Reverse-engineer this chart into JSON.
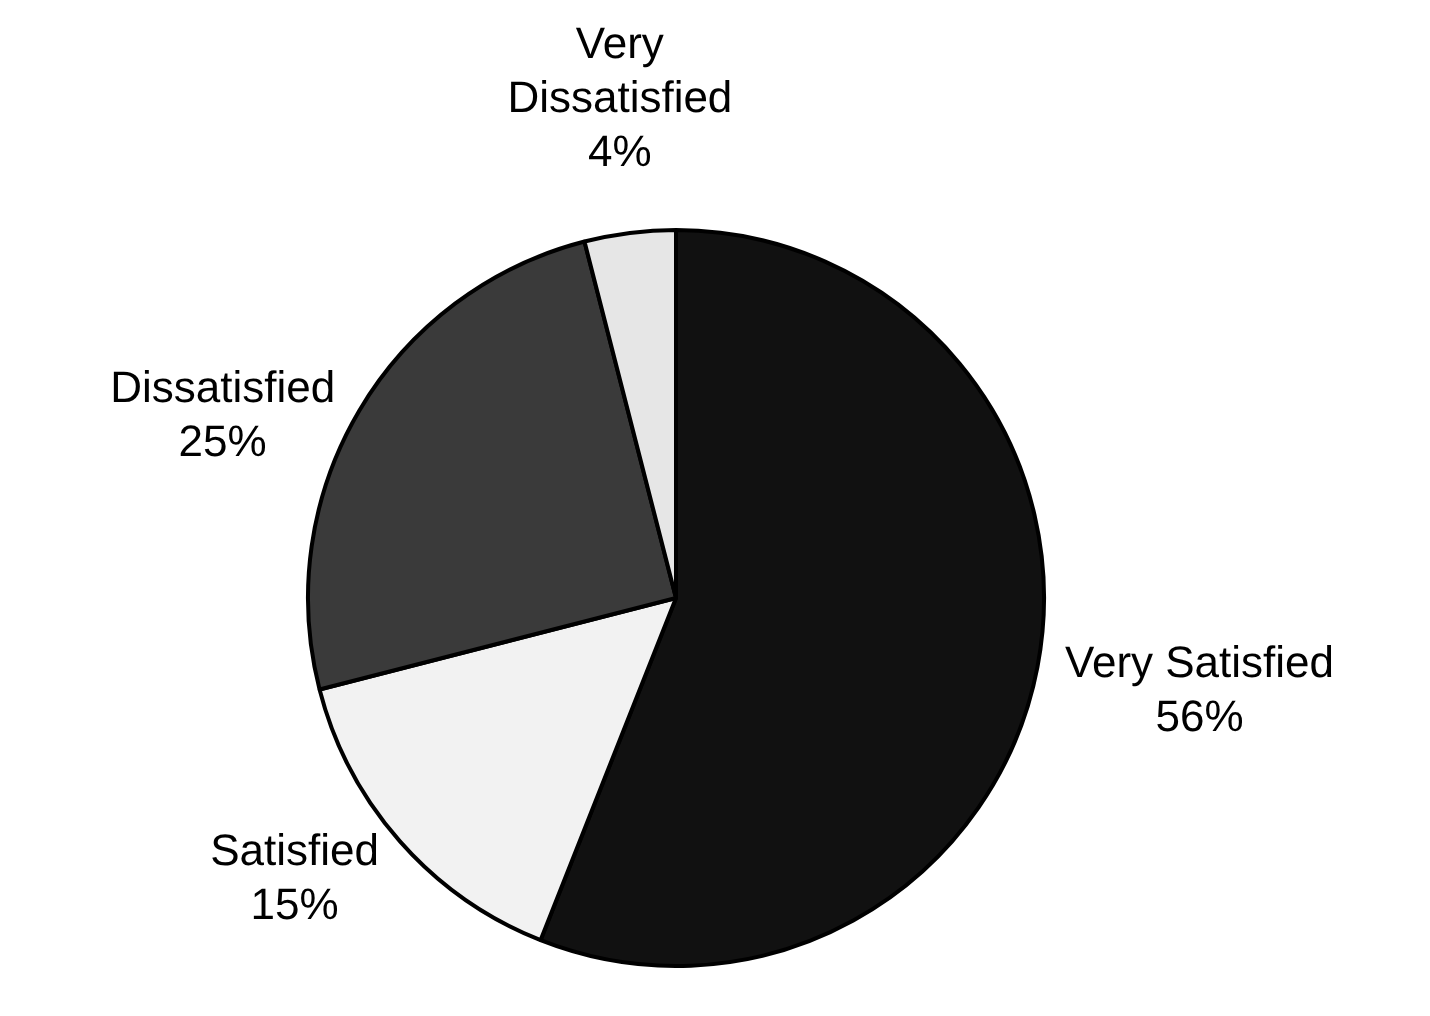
{
  "chart_data": {
    "type": "pie",
    "categories": [
      "Very Satisfied",
      "Satisfied",
      "Dissatisfied",
      "Very Dissatisfied"
    ],
    "values": [
      56,
      15,
      25,
      4
    ],
    "value_labels": [
      "56%",
      "15%",
      "25%",
      "4%"
    ],
    "colors": [
      "#111111",
      "#f2f2f2",
      "#3a3a3a",
      "#e6e6e6"
    ],
    "legend": false
  }
}
